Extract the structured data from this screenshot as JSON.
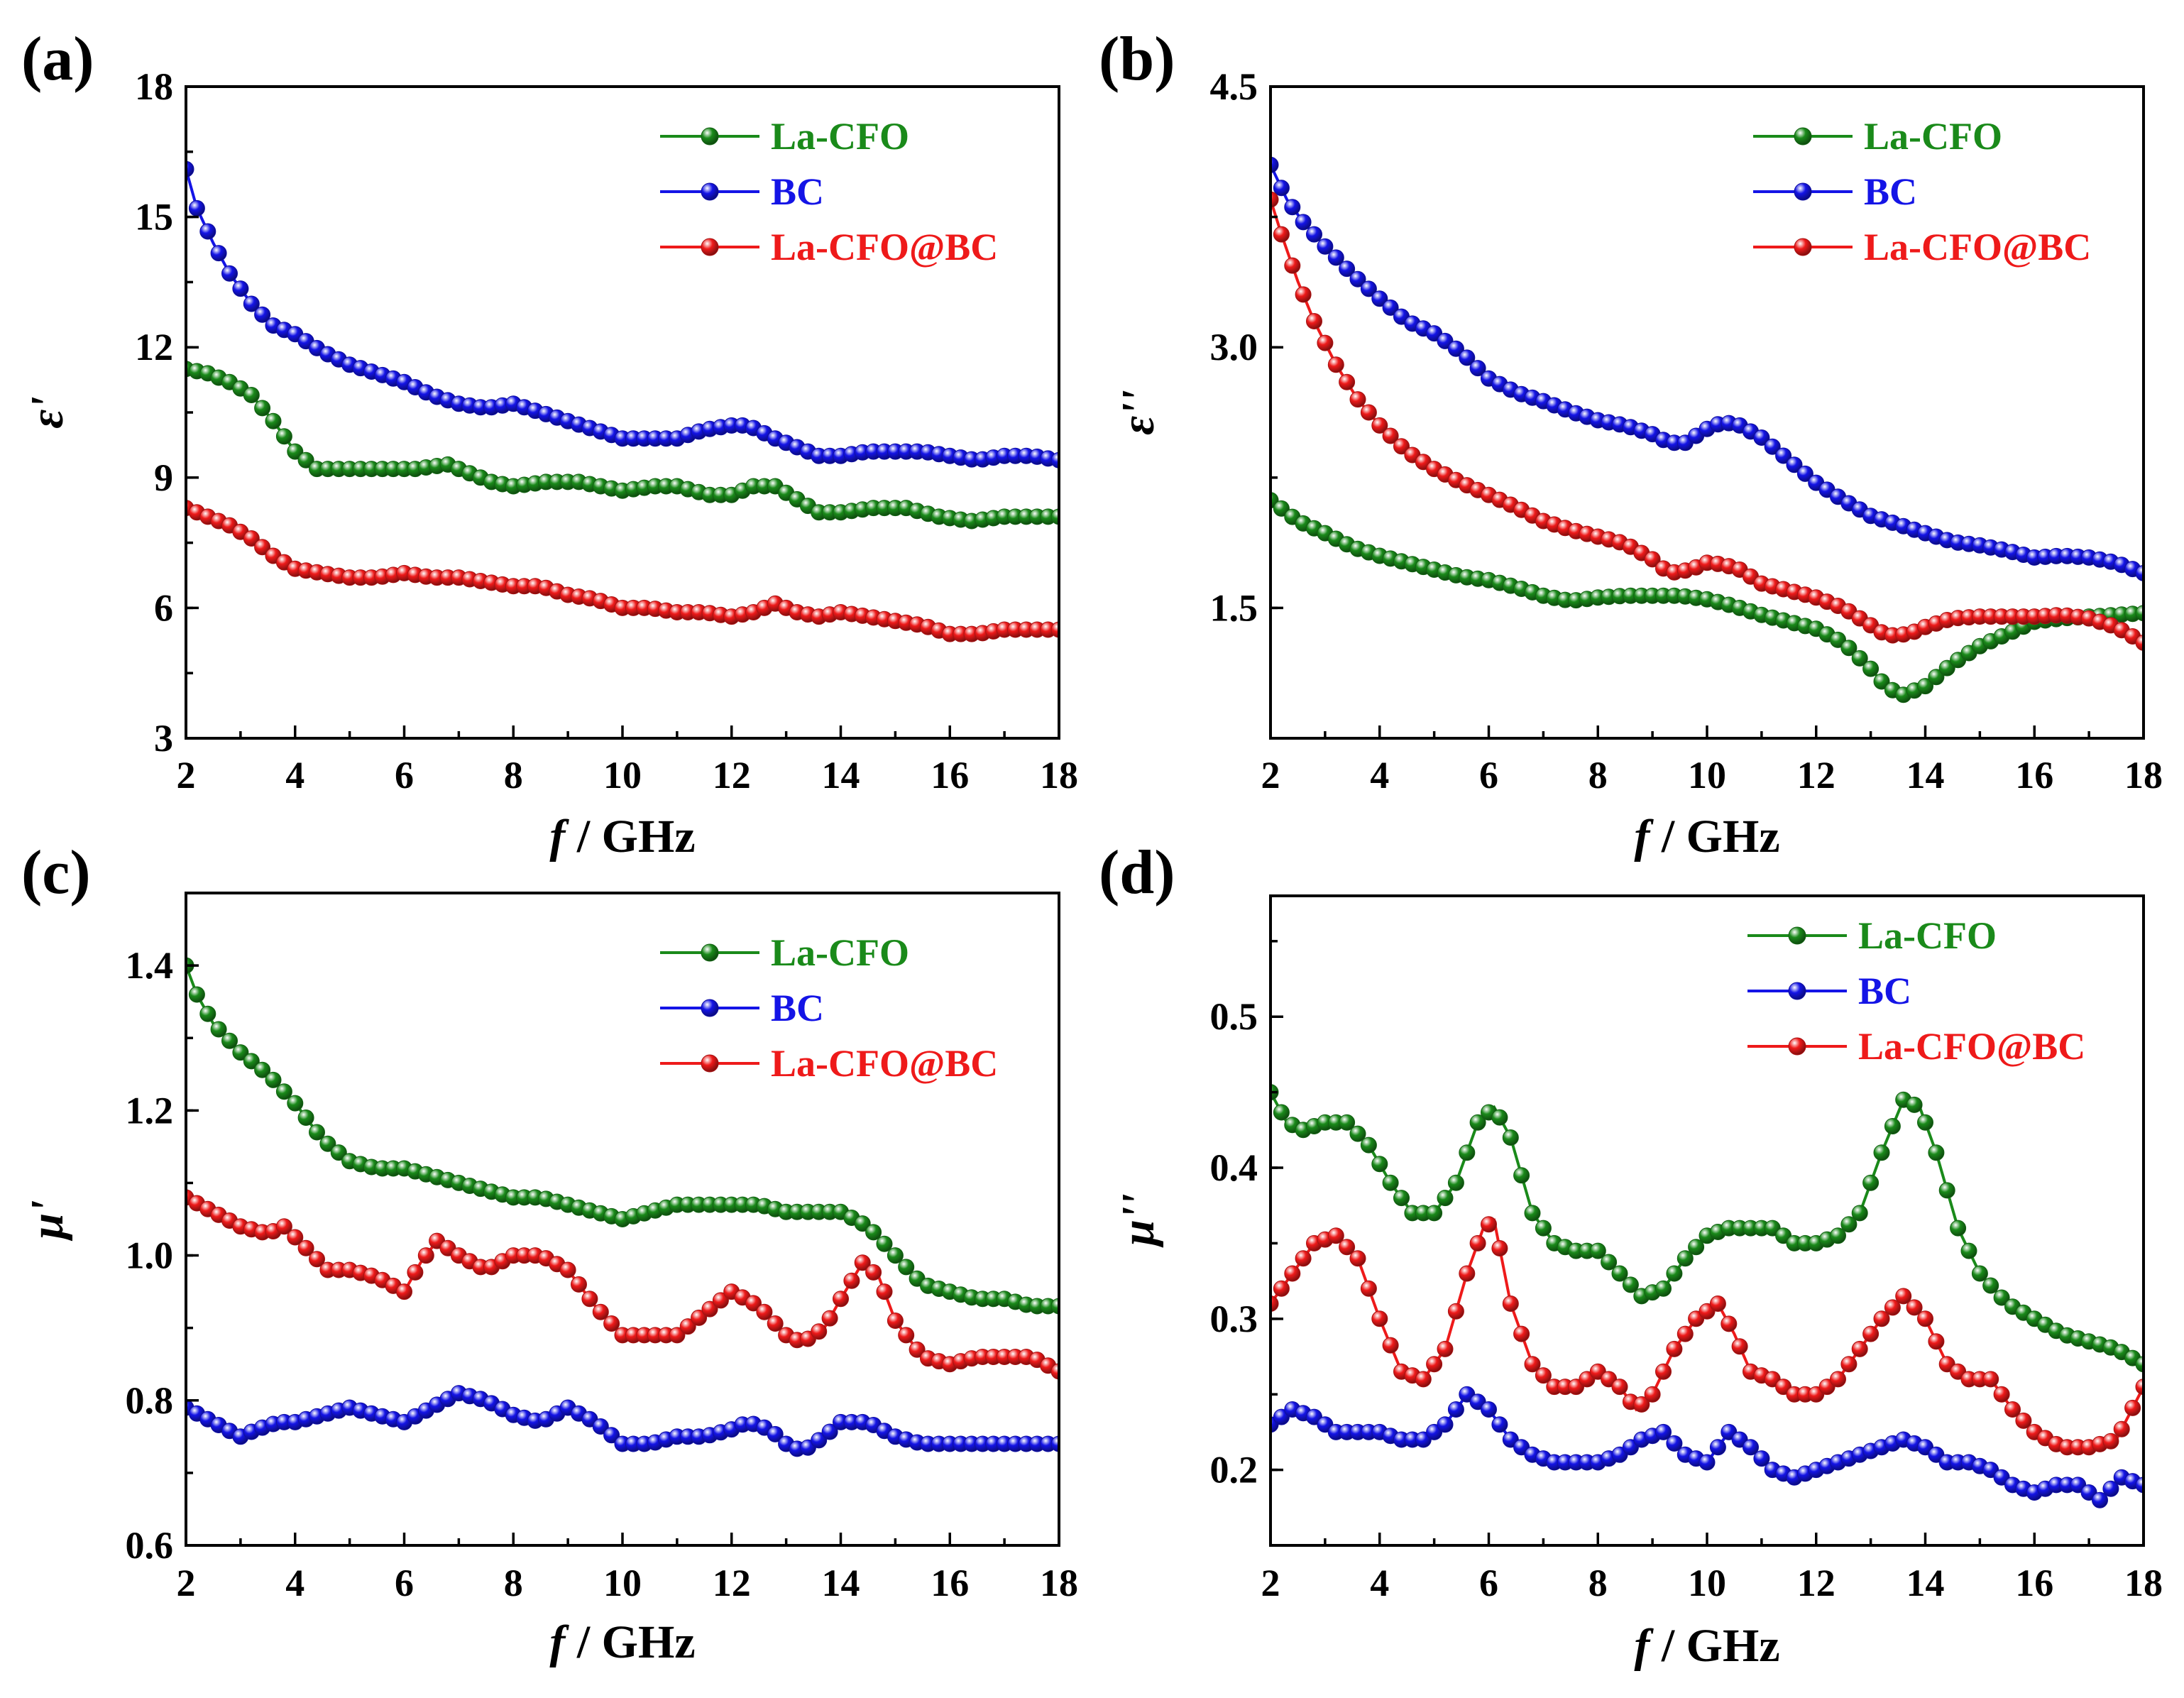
{
  "colors": {
    "La-CFO": "#1a8a1a",
    "BC": "#1414e6",
    "La-CFO@BC": "#ee1a1a"
  },
  "chart_data": [
    {
      "type": "line",
      "panel_label": "(a)",
      "xlabel_italic": "f",
      "xlabel_rest": " / GHz",
      "ylabel": "ε'",
      "xlim": [
        2,
        18
      ],
      "ylim": [
        3,
        18
      ],
      "xticks": [
        "2",
        "4",
        "6",
        "8",
        "10",
        "12",
        "14",
        "16",
        "18"
      ],
      "yticks": [
        "3",
        "6",
        "9",
        "12",
        "15",
        "18"
      ],
      "legend": [
        "La-CFO",
        "BC",
        "La-CFO@BC"
      ],
      "series": [
        {
          "name": "La-CFO",
          "x": [
            2,
            2.4,
            2.8,
            3.2,
            3.6,
            4,
            4.4,
            5,
            5.6,
            6.2,
            6.8,
            7.2,
            7.6,
            8,
            8.6,
            9.2,
            9.6,
            10,
            10.6,
            11,
            11.6,
            12,
            12.4,
            12.8,
            13.2,
            13.6,
            14,
            14.6,
            15.2,
            15.8,
            16.4,
            17,
            17.6,
            18
          ],
          "values": [
            11.5,
            11.4,
            11.2,
            10.9,
            10.3,
            9.6,
            9.2,
            9.2,
            9.2,
            9.2,
            9.3,
            9.1,
            8.9,
            8.8,
            8.9,
            8.9,
            8.8,
            8.7,
            8.8,
            8.8,
            8.6,
            8.6,
            8.8,
            8.8,
            8.5,
            8.2,
            8.2,
            8.3,
            8.3,
            8.1,
            8.0,
            8.1,
            8.1,
            8.1
          ]
        },
        {
          "name": "BC",
          "x": [
            2,
            2.2,
            2.5,
            2.8,
            3.2,
            3.6,
            4,
            4.5,
            5,
            5.5,
            6,
            6.5,
            7,
            7.5,
            8,
            8.5,
            9,
            9.5,
            10,
            10.5,
            11,
            11.5,
            12,
            12.3,
            12.8,
            13.2,
            13.6,
            14,
            14.5,
            15,
            15.5,
            16,
            16.5,
            17,
            17.5,
            18
          ],
          "values": [
            16.1,
            15.2,
            14.4,
            13.7,
            13.0,
            12.5,
            12.3,
            11.9,
            11.6,
            11.4,
            11.2,
            10.9,
            10.7,
            10.6,
            10.7,
            10.5,
            10.3,
            10.1,
            9.9,
            9.9,
            9.9,
            10.1,
            10.2,
            10.2,
            9.9,
            9.7,
            9.5,
            9.5,
            9.6,
            9.6,
            9.6,
            9.5,
            9.4,
            9.5,
            9.5,
            9.4
          ]
        },
        {
          "name": "La-CFO@BC",
          "x": [
            2,
            2.4,
            2.8,
            3.2,
            3.6,
            4,
            4.5,
            5,
            5.5,
            6,
            6.5,
            7,
            7.5,
            8,
            8.5,
            9,
            9.5,
            10,
            10.5,
            11,
            11.5,
            12,
            12.4,
            12.8,
            13.2,
            13.6,
            14,
            14.5,
            15,
            15.5,
            16,
            16.5,
            17,
            17.5,
            18
          ],
          "values": [
            8.3,
            8.1,
            7.9,
            7.6,
            7.2,
            6.9,
            6.8,
            6.7,
            6.7,
            6.8,
            6.7,
            6.7,
            6.6,
            6.5,
            6.5,
            6.3,
            6.2,
            6.0,
            6.0,
            5.9,
            5.9,
            5.8,
            5.9,
            6.1,
            5.9,
            5.8,
            5.9,
            5.8,
            5.7,
            5.6,
            5.4,
            5.4,
            5.5,
            5.5,
            5.5
          ]
        }
      ]
    },
    {
      "type": "line",
      "panel_label": "(b)",
      "xlabel_italic": "f",
      "xlabel_rest": " / GHz",
      "ylabel": "ε''",
      "xlim": [
        2,
        18
      ],
      "ylim": [
        0.75,
        4.5
      ],
      "xticks": [
        "2",
        "4",
        "6",
        "8",
        "10",
        "12",
        "14",
        "16",
        "18"
      ],
      "yticks": [
        "1.5",
        "3.0",
        "4.5"
      ],
      "legend": [
        "La-CFO",
        "BC",
        "La-CFO@BC"
      ],
      "series": [
        {
          "name": "La-CFO",
          "x": [
            2,
            2.5,
            3,
            3.5,
            4,
            4.5,
            5,
            5.5,
            6,
            6.5,
            7,
            7.5,
            8,
            8.5,
            9,
            9.5,
            10,
            10.5,
            11,
            11.5,
            12,
            12.5,
            13,
            13.3,
            13.6,
            14,
            14.5,
            15,
            15.5,
            16,
            16.5,
            17,
            17.5,
            18
          ],
          "values": [
            2.12,
            2.0,
            1.93,
            1.85,
            1.8,
            1.76,
            1.72,
            1.68,
            1.66,
            1.62,
            1.57,
            1.54,
            1.56,
            1.57,
            1.57,
            1.57,
            1.55,
            1.51,
            1.46,
            1.42,
            1.38,
            1.3,
            1.15,
            1.04,
            1.0,
            1.05,
            1.18,
            1.28,
            1.35,
            1.42,
            1.44,
            1.45,
            1.46,
            1.47
          ]
        },
        {
          "name": "BC",
          "x": [
            2,
            2.3,
            2.6,
            3,
            3.5,
            4,
            4.5,
            5,
            5.5,
            6,
            6.5,
            7,
            7.5,
            8,
            8.5,
            9,
            9.3,
            9.6,
            10,
            10.3,
            10.6,
            11,
            11.5,
            12,
            12.5,
            13,
            13.5,
            14,
            14.5,
            15,
            15.5,
            16,
            16.5,
            17,
            17.5,
            18
          ],
          "values": [
            4.05,
            3.85,
            3.72,
            3.58,
            3.42,
            3.28,
            3.15,
            3.08,
            2.97,
            2.82,
            2.74,
            2.69,
            2.63,
            2.58,
            2.55,
            2.5,
            2.45,
            2.45,
            2.53,
            2.57,
            2.55,
            2.48,
            2.35,
            2.22,
            2.12,
            2.03,
            1.98,
            1.93,
            1.88,
            1.86,
            1.83,
            1.79,
            1.8,
            1.79,
            1.76,
            1.7
          ]
        },
        {
          "name": "La-CFO@BC",
          "x": [
            2,
            2.2,
            2.5,
            2.8,
            3.2,
            3.6,
            4,
            4.5,
            5,
            5.5,
            6,
            6.5,
            7,
            7.5,
            8,
            8.5,
            9,
            9.3,
            9.7,
            10,
            10.3,
            10.6,
            11,
            11.5,
            12,
            12.5,
            13,
            13.3,
            13.7,
            14,
            14.5,
            15,
            15.5,
            16,
            16.5,
            17,
            17.5,
            18
          ],
          "values": [
            3.85,
            3.65,
            3.38,
            3.15,
            2.9,
            2.7,
            2.55,
            2.4,
            2.3,
            2.22,
            2.15,
            2.08,
            2.0,
            1.95,
            1.91,
            1.87,
            1.78,
            1.7,
            1.72,
            1.76,
            1.75,
            1.72,
            1.64,
            1.6,
            1.56,
            1.5,
            1.4,
            1.34,
            1.35,
            1.39,
            1.44,
            1.45,
            1.45,
            1.45,
            1.46,
            1.44,
            1.39,
            1.3
          ]
        }
      ]
    },
    {
      "type": "line",
      "panel_label": "(c)",
      "xlabel_italic": "f",
      "xlabel_rest": " / GHz",
      "ylabel": "μ'",
      "xlim": [
        2,
        18
      ],
      "ylim": [
        0.6,
        1.5
      ],
      "xticks": [
        "2",
        "4",
        "6",
        "8",
        "10",
        "12",
        "14",
        "16",
        "18"
      ],
      "yticks": [
        "0.6",
        "0.8",
        "1.0",
        "1.2",
        "1.4"
      ],
      "legend": [
        "La-CFO",
        "BC",
        "La-CFO@BC"
      ],
      "series": [
        {
          "name": "La-CFO",
          "x": [
            2,
            2.2,
            2.5,
            3,
            3.5,
            4,
            4.5,
            5,
            5.5,
            6,
            6.5,
            7,
            7.5,
            8,
            8.5,
            9,
            9.5,
            10,
            10.5,
            11,
            11.5,
            12,
            12.5,
            13,
            13.5,
            14,
            14.5,
            15,
            15.5,
            16,
            16.5,
            17,
            17.5,
            18
          ],
          "values": [
            1.4,
            1.36,
            1.32,
            1.28,
            1.25,
            1.21,
            1.16,
            1.13,
            1.12,
            1.12,
            1.11,
            1.1,
            1.09,
            1.08,
            1.08,
            1.07,
            1.06,
            1.05,
            1.06,
            1.07,
            1.07,
            1.07,
            1.07,
            1.06,
            1.06,
            1.06,
            1.04,
            1.0,
            0.96,
            0.95,
            0.94,
            0.94,
            0.93,
            0.93
          ]
        },
        {
          "name": "BC",
          "x": [
            2,
            2.5,
            3,
            3.3,
            3.7,
            4,
            4.5,
            5,
            5.5,
            6,
            6.5,
            7,
            7.5,
            8,
            8.5,
            9,
            9.5,
            10,
            10.5,
            11,
            11.5,
            12,
            12.3,
            12.7,
            13,
            13.3,
            13.7,
            14,
            14.5,
            15,
            15.5,
            16,
            16.5,
            17,
            17.5,
            18
          ],
          "values": [
            0.79,
            0.77,
            0.75,
            0.76,
            0.77,
            0.77,
            0.78,
            0.79,
            0.78,
            0.77,
            0.79,
            0.81,
            0.8,
            0.78,
            0.77,
            0.79,
            0.77,
            0.74,
            0.74,
            0.75,
            0.75,
            0.76,
            0.77,
            0.76,
            0.74,
            0.73,
            0.75,
            0.77,
            0.77,
            0.75,
            0.74,
            0.74,
            0.74,
            0.74,
            0.74,
            0.74
          ]
        },
        {
          "name": "La-CFO@BC",
          "x": [
            2,
            2.5,
            3,
            3.5,
            3.8,
            4.2,
            4.6,
            5,
            5.5,
            6,
            6.3,
            6.6,
            7,
            7.5,
            8,
            8.5,
            9,
            9.5,
            10,
            10.5,
            11,
            11.5,
            12,
            12.5,
            13,
            13.3,
            13.7,
            14,
            14.4,
            14.7,
            15,
            15.5,
            16,
            16.5,
            17,
            17.5,
            18
          ],
          "values": [
            1.08,
            1.06,
            1.04,
            1.03,
            1.04,
            1.01,
            0.98,
            0.98,
            0.97,
            0.95,
            0.99,
            1.02,
            1.0,
            0.98,
            1.0,
            1.0,
            0.98,
            0.93,
            0.89,
            0.89,
            0.89,
            0.92,
            0.95,
            0.93,
            0.89,
            0.88,
            0.9,
            0.94,
            0.99,
            0.97,
            0.91,
            0.86,
            0.85,
            0.86,
            0.86,
            0.86,
            0.84
          ]
        }
      ]
    },
    {
      "type": "line",
      "panel_label": "(d)",
      "xlabel_italic": "f",
      "xlabel_rest": " / GHz",
      "ylabel": "μ''",
      "xlim": [
        2,
        18
      ],
      "ylim": [
        0.15,
        0.58
      ],
      "xticks": [
        "2",
        "4",
        "6",
        "8",
        "10",
        "12",
        "14",
        "16",
        "18"
      ],
      "yticks": [
        "0.2",
        "0.3",
        "0.4",
        "0.5"
      ],
      "legend": [
        "La-CFO",
        "BC",
        "La-CFO@BC"
      ],
      "series": [
        {
          "name": "La-CFO",
          "x": [
            2,
            2.3,
            2.6,
            3,
            3.4,
            3.8,
            4.2,
            4.6,
            5,
            5.4,
            5.8,
            6.1,
            6.4,
            6.8,
            7.2,
            7.6,
            8,
            8.4,
            8.8,
            9.2,
            9.6,
            10,
            10.4,
            10.8,
            11.2,
            11.6,
            12,
            12.4,
            12.8,
            13.2,
            13.6,
            13.9,
            14.2,
            14.6,
            15,
            15.5,
            16,
            16.5,
            17,
            17.5,
            18
          ],
          "values": [
            0.45,
            0.43,
            0.425,
            0.43,
            0.43,
            0.415,
            0.39,
            0.37,
            0.37,
            0.39,
            0.43,
            0.44,
            0.42,
            0.37,
            0.35,
            0.345,
            0.345,
            0.33,
            0.315,
            0.32,
            0.34,
            0.355,
            0.36,
            0.36,
            0.36,
            0.35,
            0.35,
            0.355,
            0.37,
            0.41,
            0.445,
            0.44,
            0.41,
            0.36,
            0.33,
            0.31,
            0.3,
            0.29,
            0.285,
            0.28,
            0.27
          ]
        },
        {
          "name": "BC",
          "x": [
            2,
            2.4,
            2.8,
            3.2,
            3.6,
            4,
            4.4,
            4.8,
            5.2,
            5.6,
            6,
            6.4,
            6.8,
            7.2,
            7.6,
            8,
            8.4,
            8.8,
            9.2,
            9.6,
            10,
            10.4,
            10.8,
            11.2,
            11.6,
            12,
            12.4,
            12.8,
            13.2,
            13.6,
            14,
            14.4,
            14.8,
            15.2,
            15.6,
            16,
            16.4,
            16.8,
            17.2,
            17.6,
            18
          ],
          "values": [
            0.23,
            0.24,
            0.235,
            0.225,
            0.225,
            0.225,
            0.22,
            0.22,
            0.23,
            0.25,
            0.24,
            0.22,
            0.21,
            0.205,
            0.205,
            0.205,
            0.21,
            0.22,
            0.225,
            0.21,
            0.205,
            0.225,
            0.215,
            0.2,
            0.195,
            0.2,
            0.205,
            0.21,
            0.215,
            0.22,
            0.215,
            0.205,
            0.205,
            0.2,
            0.19,
            0.185,
            0.19,
            0.19,
            0.18,
            0.195,
            0.19
          ]
        },
        {
          "name": "La-CFO@BC",
          "x": [
            2,
            2.4,
            2.8,
            3.2,
            3.6,
            4,
            4.4,
            4.8,
            5.2,
            5.6,
            5.9,
            6.1,
            6.4,
            6.8,
            7.2,
            7.6,
            8,
            8.4,
            8.7,
            9,
            9.4,
            9.8,
            10.2,
            10.5,
            10.8,
            11.2,
            11.6,
            12,
            12.4,
            12.8,
            13.2,
            13.6,
            14,
            14.4,
            14.8,
            15.2,
            15.6,
            16,
            16.5,
            17,
            17.5,
            18
          ],
          "values": [
            0.31,
            0.33,
            0.35,
            0.355,
            0.34,
            0.3,
            0.265,
            0.26,
            0.28,
            0.33,
            0.36,
            0.365,
            0.31,
            0.27,
            0.255,
            0.255,
            0.265,
            0.255,
            0.24,
            0.25,
            0.28,
            0.3,
            0.31,
            0.29,
            0.265,
            0.26,
            0.25,
            0.25,
            0.26,
            0.28,
            0.3,
            0.315,
            0.3,
            0.27,
            0.26,
            0.26,
            0.24,
            0.225,
            0.215,
            0.215,
            0.22,
            0.255
          ]
        }
      ]
    }
  ]
}
